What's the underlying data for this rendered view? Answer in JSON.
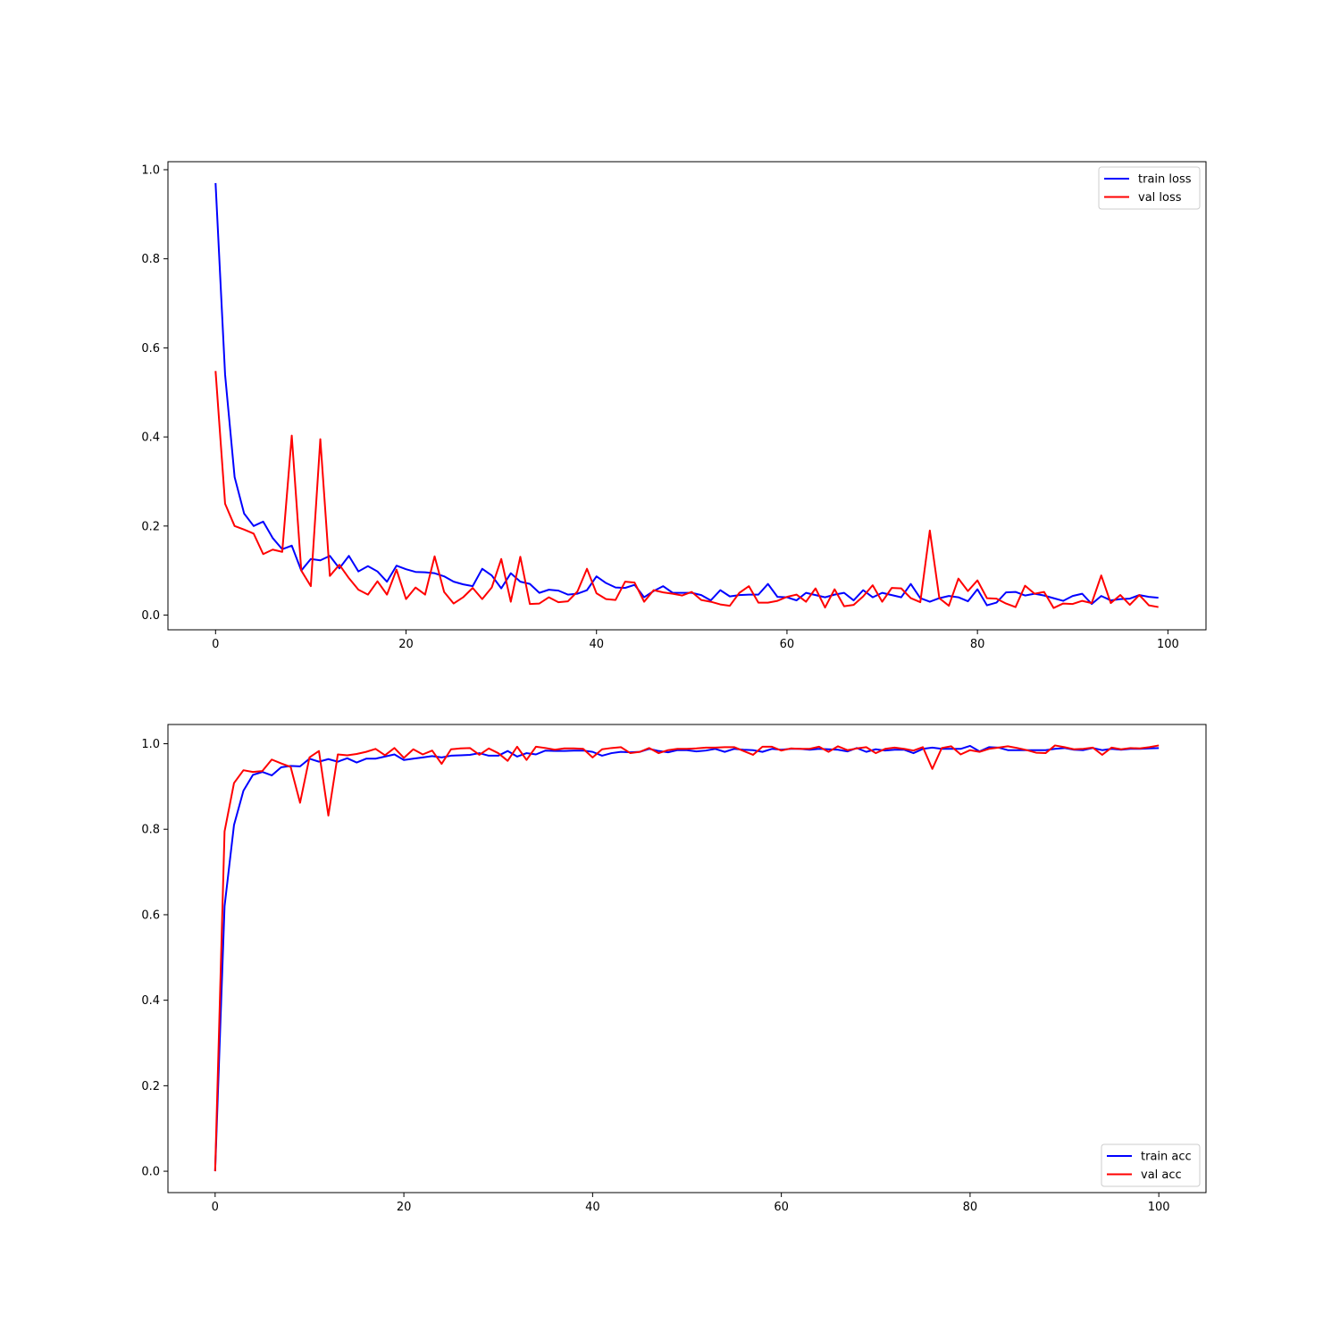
{
  "chart_data": [
    {
      "type": "line",
      "xlim": [
        -5,
        104
      ],
      "ylim": [
        -0.033,
        1.018
      ],
      "xticks": [
        0,
        20,
        40,
        60,
        80,
        100
      ],
      "yticks": [
        0.0,
        0.2,
        0.4,
        0.6,
        0.8,
        1.0
      ],
      "xtick_labels": [
        "0",
        "20",
        "40",
        "60",
        "80",
        "100"
      ],
      "ytick_labels": [
        "0.0",
        "0.2",
        "0.4",
        "0.6",
        "0.8",
        "1.0"
      ],
      "legend_position": "upper right",
      "series": [
        {
          "name": "train loss",
          "color": "#0000ff",
          "x": [
            0,
            1,
            2,
            3,
            4,
            5,
            6,
            7,
            8,
            9,
            10,
            11,
            12,
            13,
            14,
            15,
            16,
            17,
            18,
            19,
            20,
            21,
            22,
            23,
            24,
            25,
            26,
            27,
            28,
            29,
            30,
            31,
            32,
            33,
            34,
            35,
            36,
            37,
            38,
            39,
            40,
            41,
            42,
            43,
            44,
            45,
            46,
            47,
            48,
            49,
            50,
            51,
            52,
            53,
            54,
            55,
            56,
            57,
            58,
            59,
            60,
            61,
            62,
            63,
            64,
            65,
            66,
            67,
            68,
            69,
            70,
            71,
            72,
            73,
            74,
            75,
            76,
            77,
            78,
            79,
            80,
            81,
            82,
            83,
            84,
            85,
            86,
            87,
            88,
            89,
            90,
            91,
            92,
            93,
            94,
            95,
            96,
            97,
            98,
            99
          ],
          "y": [
            0.97,
            0.54,
            0.31,
            0.228,
            0.2,
            0.21,
            0.173,
            0.148,
            0.156,
            0.1,
            0.126,
            0.123,
            0.133,
            0.105,
            0.133,
            0.098,
            0.11,
            0.098,
            0.075,
            0.111,
            0.103,
            0.097,
            0.096,
            0.094,
            0.087,
            0.075,
            0.069,
            0.065,
            0.104,
            0.089,
            0.06,
            0.094,
            0.075,
            0.07,
            0.05,
            0.057,
            0.055,
            0.046,
            0.048,
            0.056,
            0.087,
            0.072,
            0.062,
            0.061,
            0.068,
            0.04,
            0.054,
            0.065,
            0.05,
            0.05,
            0.05,
            0.045,
            0.033,
            0.056,
            0.042,
            0.045,
            0.046,
            0.046,
            0.07,
            0.041,
            0.04,
            0.033,
            0.05,
            0.045,
            0.04,
            0.046,
            0.05,
            0.033,
            0.056,
            0.04,
            0.05,
            0.045,
            0.04,
            0.07,
            0.038,
            0.03,
            0.038,
            0.043,
            0.04,
            0.031,
            0.058,
            0.022,
            0.028,
            0.051,
            0.052,
            0.044,
            0.048,
            0.044,
            0.038,
            0.032,
            0.043,
            0.048,
            0.025,
            0.043,
            0.033,
            0.036,
            0.037,
            0.045,
            0.041,
            0.039
          ]
        },
        {
          "name": "val loss",
          "color": "#ff0000",
          "x": [
            0,
            1,
            2,
            3,
            4,
            5,
            6,
            7,
            8,
            9,
            10,
            11,
            12,
            13,
            14,
            15,
            16,
            17,
            18,
            19,
            20,
            21,
            22,
            23,
            24,
            25,
            26,
            27,
            28,
            29,
            30,
            31,
            32,
            33,
            34,
            35,
            36,
            37,
            38,
            39,
            40,
            41,
            42,
            43,
            44,
            45,
            46,
            47,
            48,
            49,
            50,
            51,
            52,
            53,
            54,
            55,
            56,
            57,
            58,
            59,
            60,
            61,
            62,
            63,
            64,
            65,
            66,
            67,
            68,
            69,
            70,
            71,
            72,
            73,
            74,
            75,
            76,
            77,
            78,
            79,
            80,
            81,
            82,
            83,
            84,
            85,
            86,
            87,
            88,
            89,
            90,
            91,
            92,
            93,
            94,
            95,
            96,
            97,
            98,
            99
          ],
          "y": [
            0.548,
            0.25,
            0.2,
            0.192,
            0.183,
            0.137,
            0.147,
            0.142,
            0.403,
            0.1,
            0.065,
            0.395,
            0.088,
            0.113,
            0.083,
            0.057,
            0.046,
            0.076,
            0.046,
            0.102,
            0.036,
            0.062,
            0.046,
            0.132,
            0.052,
            0.026,
            0.04,
            0.061,
            0.036,
            0.062,
            0.126,
            0.03,
            0.131,
            0.025,
            0.026,
            0.04,
            0.029,
            0.031,
            0.053,
            0.104,
            0.049,
            0.036,
            0.034,
            0.075,
            0.073,
            0.03,
            0.056,
            0.051,
            0.048,
            0.044,
            0.052,
            0.034,
            0.03,
            0.024,
            0.021,
            0.05,
            0.065,
            0.028,
            0.028,
            0.032,
            0.041,
            0.046,
            0.03,
            0.06,
            0.017,
            0.058,
            0.02,
            0.023,
            0.042,
            0.067,
            0.03,
            0.061,
            0.06,
            0.038,
            0.029,
            0.19,
            0.038,
            0.021,
            0.082,
            0.054,
            0.078,
            0.038,
            0.037,
            0.026,
            0.018,
            0.066,
            0.048,
            0.052,
            0.016,
            0.026,
            0.025,
            0.032,
            0.027,
            0.089,
            0.027,
            0.045,
            0.023,
            0.045,
            0.022,
            0.018
          ]
        }
      ]
    },
    {
      "type": "line",
      "xlim": [
        -5,
        105
      ],
      "ylim": [
        -0.05,
        1.045
      ],
      "xticks": [
        0,
        20,
        40,
        60,
        80,
        100
      ],
      "yticks": [
        0.0,
        0.2,
        0.4,
        0.6,
        0.8,
        1.0
      ],
      "xtick_labels": [
        "0",
        "20",
        "40",
        "60",
        "80",
        "100"
      ],
      "ytick_labels": [
        "0.0",
        "0.2",
        "0.4",
        "0.6",
        "0.8",
        "1.0"
      ],
      "legend_position": "lower right",
      "series": [
        {
          "name": "train acc",
          "color": "#0000ff",
          "x": [
            0,
            1,
            2,
            3,
            4,
            5,
            6,
            7,
            8,
            9,
            10,
            11,
            12,
            13,
            14,
            15,
            16,
            17,
            18,
            19,
            20,
            21,
            22,
            23,
            24,
            25,
            26,
            27,
            28,
            29,
            30,
            31,
            32,
            33,
            34,
            35,
            36,
            37,
            38,
            39,
            40,
            41,
            42,
            43,
            44,
            45,
            46,
            47,
            48,
            49,
            50,
            51,
            52,
            53,
            54,
            55,
            56,
            57,
            58,
            59,
            60,
            61,
            62,
            63,
            64,
            65,
            66,
            67,
            68,
            69,
            70,
            71,
            72,
            73,
            74,
            75,
            76,
            77,
            78,
            79,
            80,
            81,
            82,
            83,
            84,
            85,
            86,
            87,
            88,
            89,
            90,
            91,
            92,
            93,
            94,
            95,
            96,
            97,
            98,
            99,
            100
          ],
          "y": [
            0.0,
            0.62,
            0.81,
            0.89,
            0.927,
            0.934,
            0.926,
            0.945,
            0.948,
            0.947,
            0.965,
            0.958,
            0.964,
            0.958,
            0.966,
            0.956,
            0.965,
            0.965,
            0.97,
            0.975,
            0.962,
            0.965,
            0.968,
            0.971,
            0.968,
            0.972,
            0.973,
            0.974,
            0.978,
            0.972,
            0.972,
            0.983,
            0.97,
            0.978,
            0.975,
            0.984,
            0.983,
            0.983,
            0.984,
            0.984,
            0.981,
            0.972,
            0.978,
            0.981,
            0.98,
            0.981,
            0.988,
            0.983,
            0.98,
            0.985,
            0.985,
            0.982,
            0.984,
            0.988,
            0.981,
            0.988,
            0.986,
            0.985,
            0.981,
            0.988,
            0.986,
            0.988,
            0.988,
            0.986,
            0.988,
            0.987,
            0.986,
            0.982,
            0.99,
            0.981,
            0.987,
            0.984,
            0.986,
            0.986,
            0.978,
            0.988,
            0.991,
            0.988,
            0.988,
            0.988,
            0.995,
            0.982,
            0.992,
            0.991,
            0.985,
            0.985,
            0.985,
            0.985,
            0.985,
            0.988,
            0.99,
            0.986,
            0.985,
            0.99,
            0.985,
            0.988,
            0.986,
            0.988,
            0.988,
            0.989,
            0.99
          ]
        },
        {
          "name": "val acc",
          "color": "#ff0000",
          "x": [
            0,
            1,
            2,
            3,
            4,
            5,
            6,
            7,
            8,
            9,
            10,
            11,
            12,
            13,
            14,
            15,
            16,
            17,
            18,
            19,
            20,
            21,
            22,
            23,
            24,
            25,
            26,
            27,
            28,
            29,
            30,
            31,
            32,
            33,
            34,
            35,
            36,
            37,
            38,
            39,
            40,
            41,
            42,
            43,
            44,
            45,
            46,
            47,
            48,
            49,
            50,
            51,
            52,
            53,
            54,
            55,
            56,
            57,
            58,
            59,
            60,
            61,
            62,
            63,
            64,
            65,
            66,
            67,
            68,
            69,
            70,
            71,
            72,
            73,
            74,
            75,
            76,
            77,
            78,
            79,
            80,
            81,
            82,
            83,
            84,
            85,
            86,
            87,
            88,
            89,
            90,
            91,
            92,
            93,
            94,
            95,
            96,
            97,
            98,
            99,
            100
          ],
          "y": [
            0.0,
            0.795,
            0.908,
            0.938,
            0.934,
            0.936,
            0.963,
            0.954,
            0.946,
            0.862,
            0.968,
            0.983,
            0.832,
            0.975,
            0.973,
            0.976,
            0.981,
            0.988,
            0.973,
            0.99,
            0.967,
            0.987,
            0.975,
            0.984,
            0.953,
            0.987,
            0.989,
            0.99,
            0.974,
            0.989,
            0.978,
            0.96,
            0.993,
            0.962,
            0.993,
            0.99,
            0.986,
            0.989,
            0.989,
            0.988,
            0.968,
            0.987,
            0.99,
            0.992,
            0.978,
            0.981,
            0.99,
            0.978,
            0.985,
            0.988,
            0.988,
            0.989,
            0.991,
            0.991,
            0.992,
            0.992,
            0.983,
            0.974,
            0.993,
            0.993,
            0.984,
            0.989,
            0.988,
            0.988,
            0.993,
            0.981,
            0.994,
            0.985,
            0.989,
            0.992,
            0.978,
            0.988,
            0.991,
            0.988,
            0.984,
            0.992,
            0.941,
            0.99,
            0.994,
            0.975,
            0.985,
            0.981,
            0.988,
            0.991,
            0.994,
            0.99,
            0.985,
            0.979,
            0.978,
            0.996,
            0.992,
            0.987,
            0.988,
            0.991,
            0.974,
            0.991,
            0.987,
            0.99,
            0.989,
            0.992,
            0.996
          ]
        }
      ]
    }
  ]
}
